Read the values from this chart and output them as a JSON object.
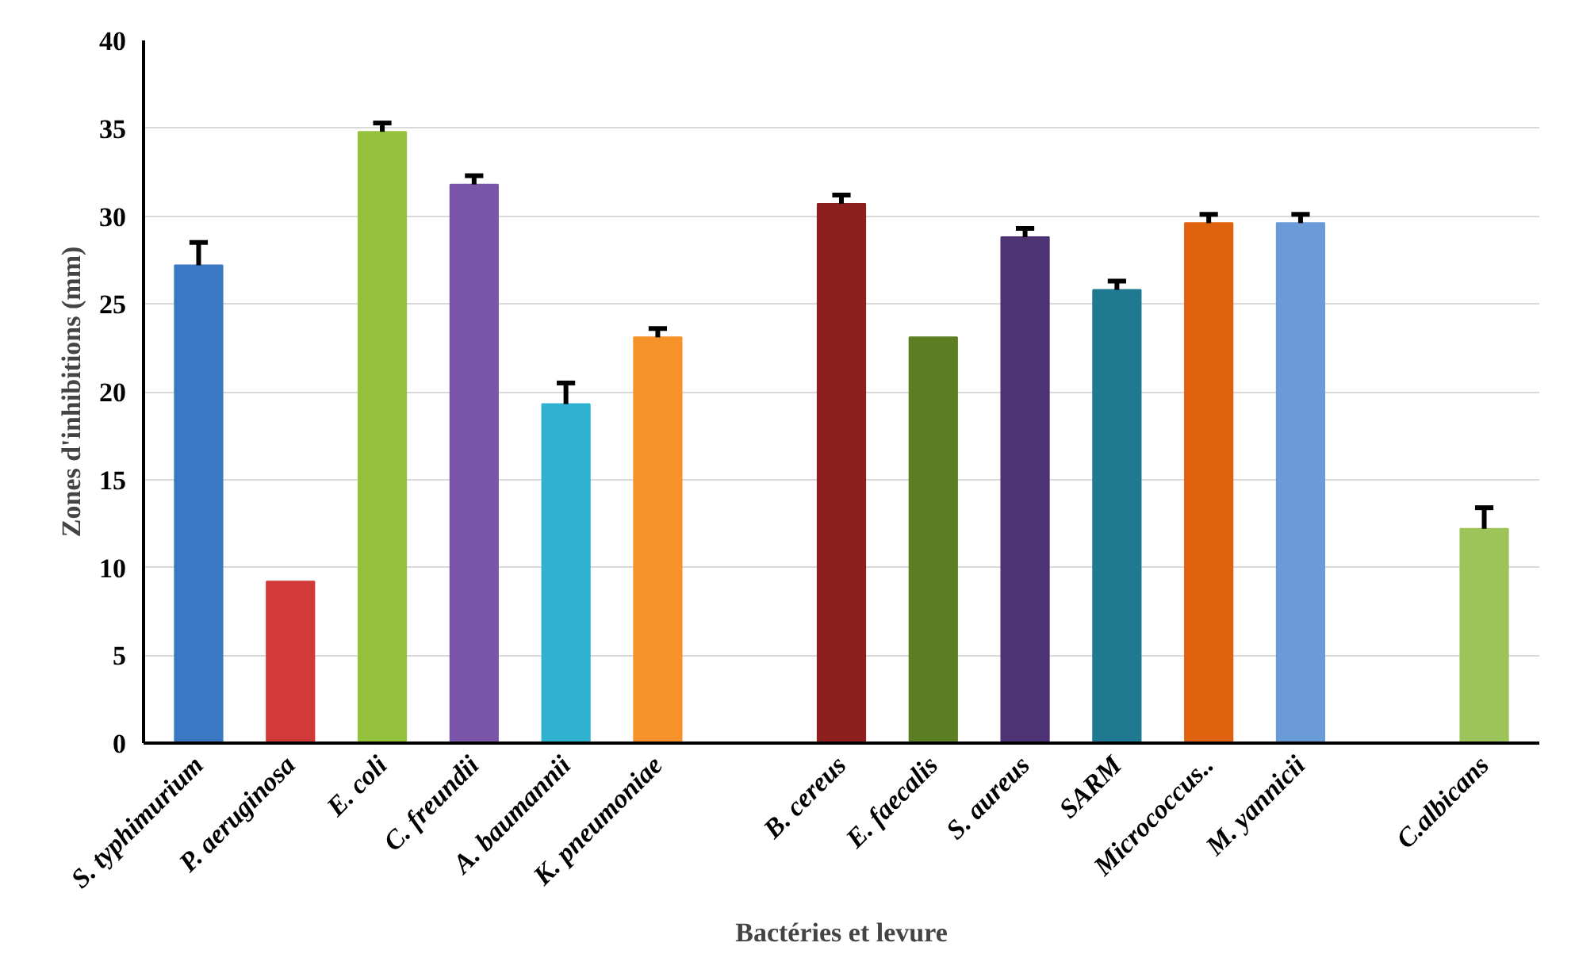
{
  "chart_data": {
    "type": "bar",
    "xlabel": "Bactéries et levure",
    "ylabel": "Zones d'inhibitions (mm)",
    "categories": [
      "S. typhimurium",
      "P. aeruginosa",
      "E. coli",
      "C. freundii",
      "A. baumannii",
      "K. pneumoniae",
      null,
      "B. cereus",
      "E. faecalis",
      "S. aureus",
      "SARM",
      "Micrococcus..",
      "M. yannicii",
      null,
      "C.albicans"
    ],
    "values": [
      27.2,
      9.2,
      34.8,
      31.8,
      19.3,
      23.1,
      null,
      30.7,
      23.1,
      28.8,
      25.8,
      29.6,
      29.6,
      null,
      12.2
    ],
    "errors": [
      [
        27.2,
        28.5
      ],
      null,
      [
        34.8,
        35.3
      ],
      [
        31.8,
        32.3
      ],
      [
        19.3,
        20.5
      ],
      [
        23.1,
        23.6
      ],
      null,
      [
        30.7,
        31.2
      ],
      null,
      [
        28.8,
        29.3
      ],
      [
        25.8,
        26.3
      ],
      [
        29.6,
        30.1
      ],
      [
        29.6,
        30.1
      ],
      null,
      [
        12.2,
        13.4
      ]
    ],
    "colors": [
      "#3a78c4",
      "#d23a3a",
      "#94c23c",
      "#7b55a8",
      "#2eb2cf",
      "#f7922a",
      "#ffffff",
      "#8e1f1f",
      "#5c7f23",
      "#4d3373",
      "#1f7a91",
      "#e1620e",
      "#6a9bd8",
      "#ffffff",
      "#9cc45a"
    ],
    "ylim": [
      0,
      40
    ],
    "yticks": [
      0,
      5,
      10,
      15,
      20,
      25,
      30,
      35,
      40
    ],
    "grid": "y"
  }
}
